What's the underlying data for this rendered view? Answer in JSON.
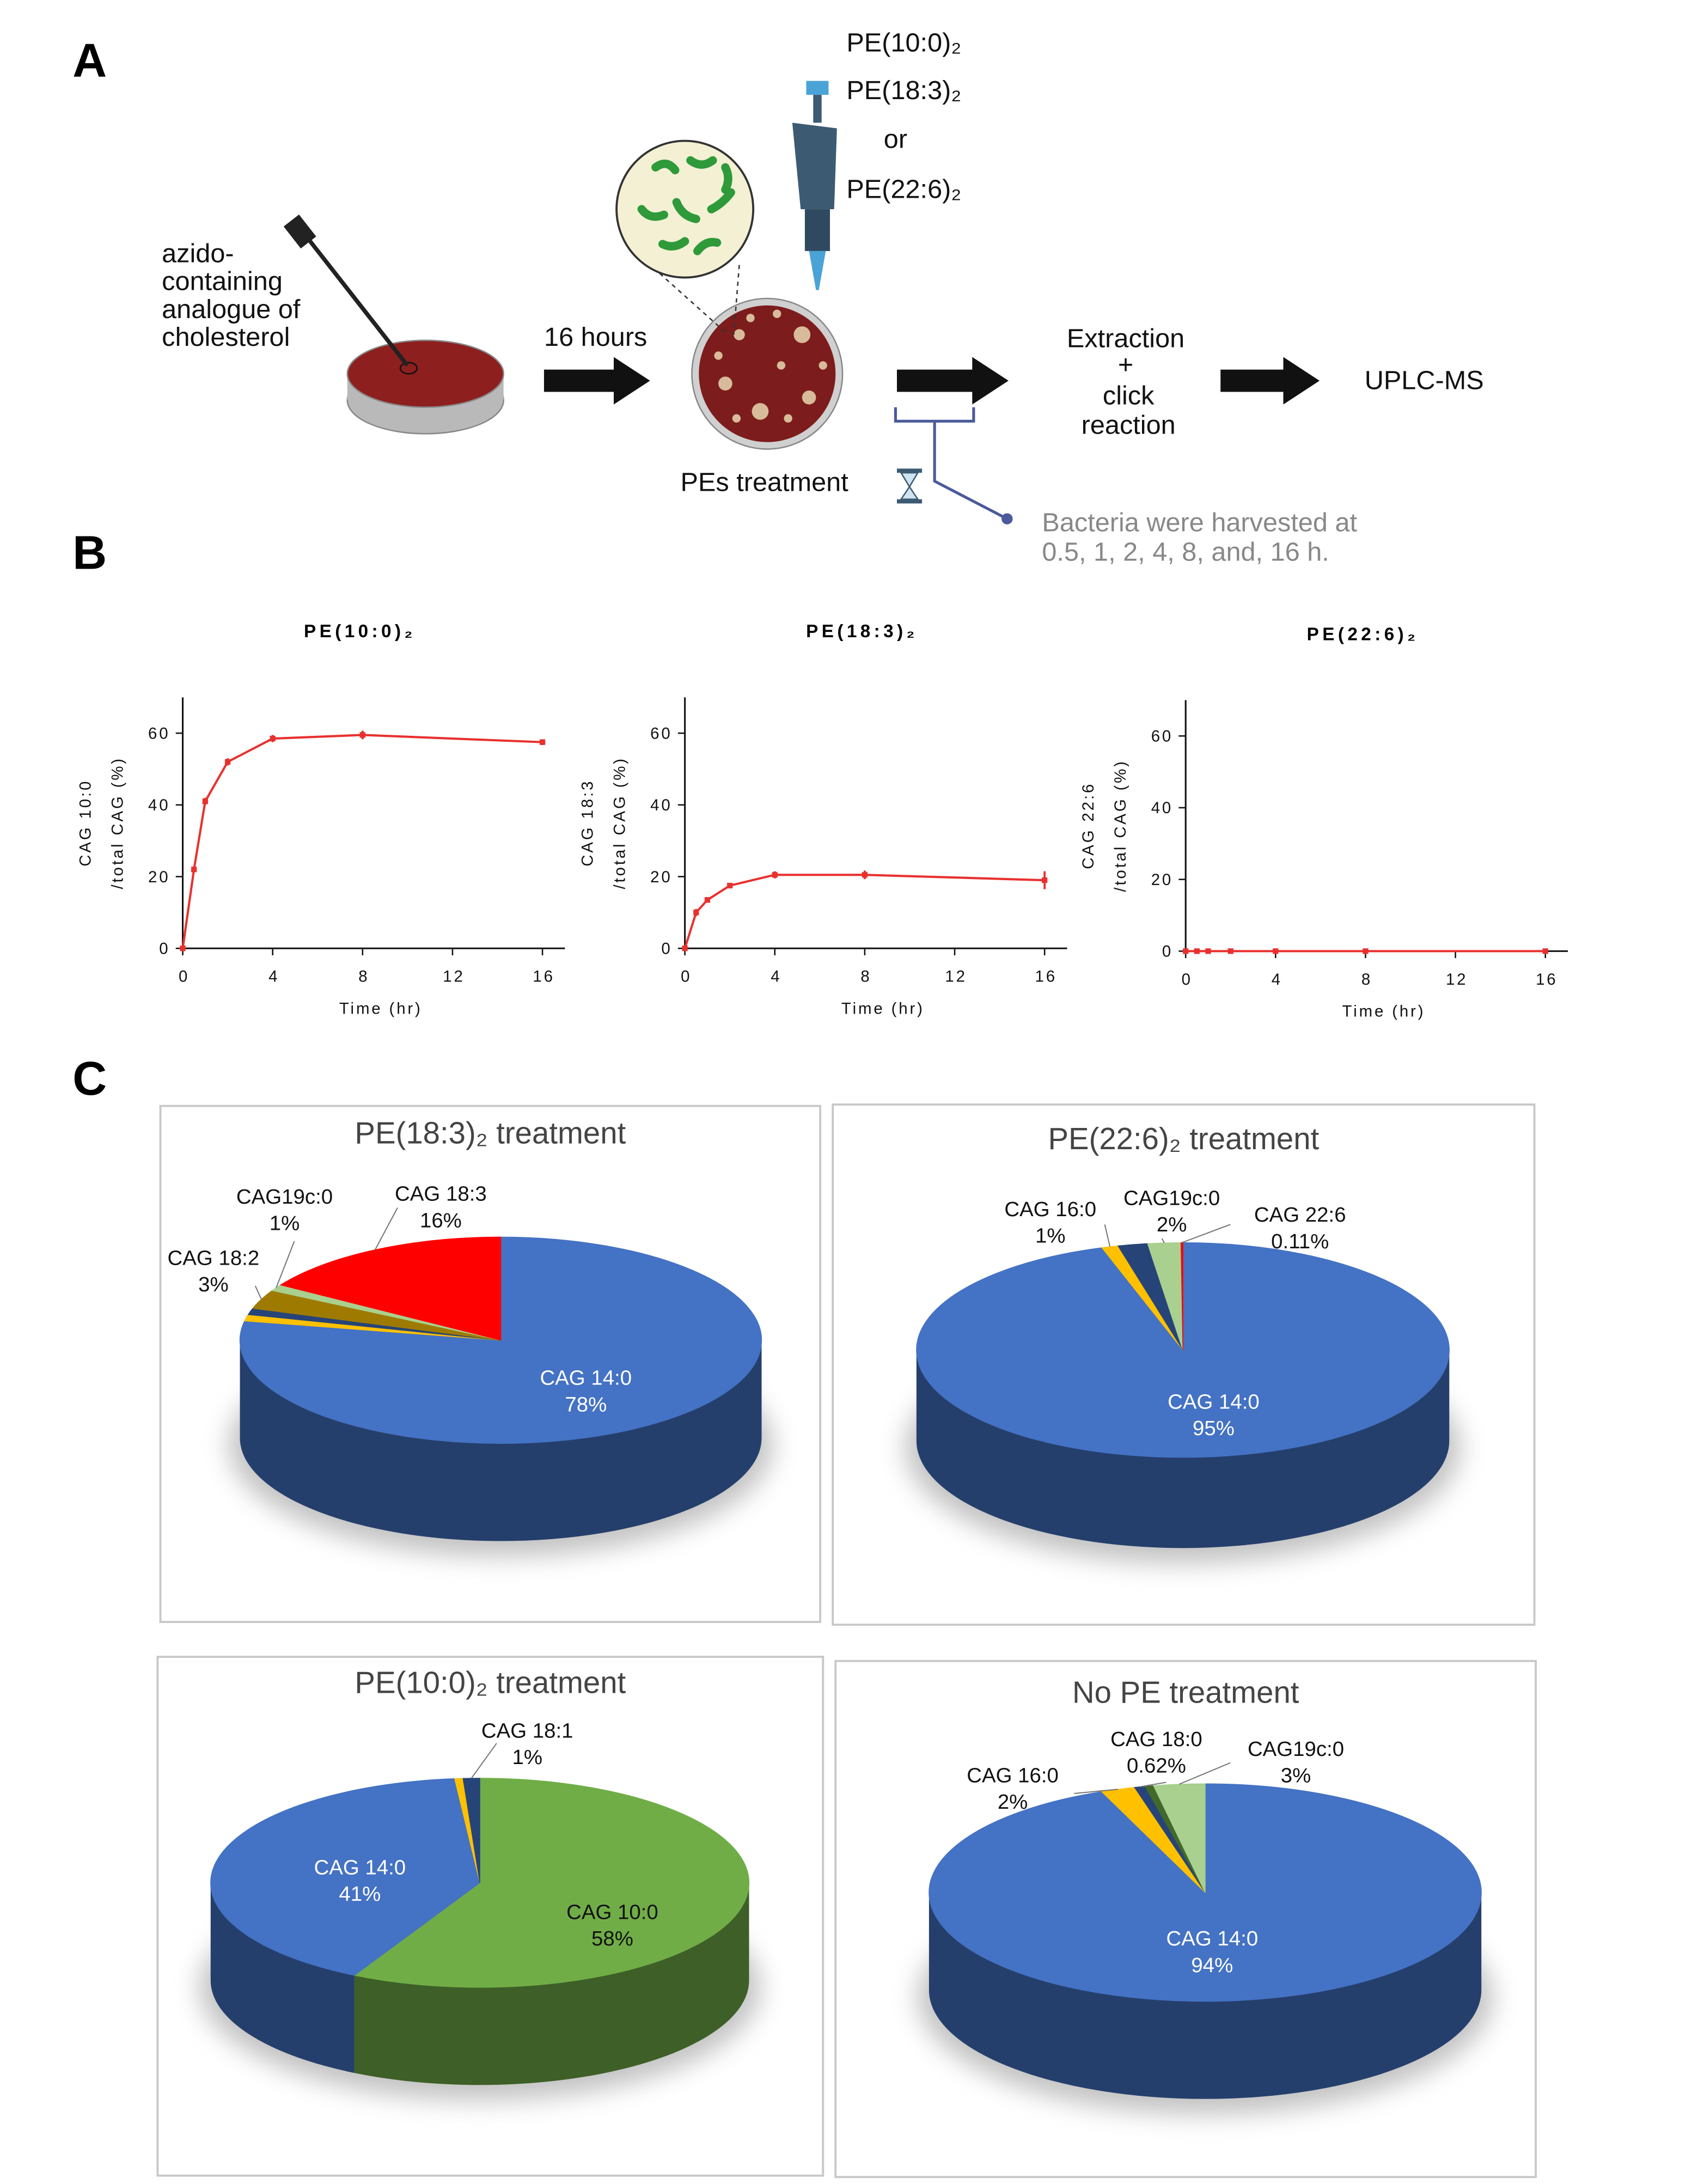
{
  "panel_labels": {
    "a": "A",
    "b": "B",
    "c": "C"
  },
  "diagram": {
    "substrate": [
      "azido-",
      "containing",
      "analogue of",
      "cholesterol"
    ],
    "incubation": "16 hours",
    "treatments": [
      "PE(10:0)₂",
      "PE(18:3)₂",
      "or",
      "PE(22:6)₂"
    ],
    "treatment_label": "PEs treatment",
    "processing": [
      "Extraction",
      "+",
      "click",
      "reaction"
    ],
    "analysis": "UPLC-MS",
    "note": [
      "Bacteria were harvested at",
      "0.5, 1, 2, 4, 8, and, 16 h."
    ]
  },
  "chart_data": [
    {
      "type": "line",
      "title": "PE(10:0)₂",
      "xlabel": "Time (hr)",
      "ylabel": [
        "CAG 10:0",
        "/total CAG (%)"
      ],
      "x": [
        0,
        0.5,
        1,
        2,
        4,
        8,
        16
      ],
      "series": [
        {
          "color": "#e8312f",
          "values": [
            0,
            22,
            41,
            52,
            58.5,
            59.5,
            57.5
          ],
          "errors": [
            0,
            0.8,
            1,
            1,
            1,
            1.2,
            0.8
          ]
        }
      ],
      "xlim": [
        0,
        17
      ],
      "ylim": [
        0,
        70
      ],
      "xticks": [
        0,
        4,
        8,
        12,
        16
      ],
      "yticks": [
        0,
        20,
        40,
        60
      ]
    },
    {
      "type": "line",
      "title": "PE(18:3)₂",
      "xlabel": "Time (hr)",
      "ylabel": [
        "CAG 18:3",
        "/total CAG (%)"
      ],
      "x": [
        0,
        0.5,
        1,
        2,
        4,
        8,
        16
      ],
      "series": [
        {
          "color": "#e8312f",
          "values": [
            0,
            10,
            13.5,
            17.5,
            20.5,
            20.5,
            19
          ],
          "errors": [
            0,
            1,
            0.8,
            0.6,
            1,
            1.2,
            2.5
          ]
        }
      ],
      "xlim": [
        0,
        17
      ],
      "ylim": [
        0,
        70
      ],
      "xticks": [
        0,
        4,
        8,
        12,
        16
      ],
      "yticks": [
        0,
        20,
        40,
        60
      ]
    },
    {
      "type": "line",
      "title": "PE(22:6)₂",
      "xlabel": "Time (hr)",
      "ylabel": [
        "CAG 22:6",
        "/total CAG (%)"
      ],
      "x": [
        0,
        0.5,
        1,
        2,
        4,
        8,
        16
      ],
      "series": [
        {
          "color": "#e8312f",
          "values": [
            0,
            0,
            0,
            0,
            0,
            0,
            0
          ],
          "errors": [
            0,
            0,
            0,
            0,
            0,
            0,
            0
          ]
        }
      ],
      "xlim": [
        0,
        17
      ],
      "ylim": [
        0,
        70
      ],
      "xticks": [
        0,
        4,
        8,
        12,
        16
      ],
      "yticks": [
        0,
        20,
        40,
        60
      ]
    },
    {
      "type": "pie",
      "title": "PE(18:3)₂ treatment",
      "categories": [
        "CAG 14:0",
        null,
        null,
        "CAG 18:2",
        "CAG19c:0",
        "CAG 18:3"
      ],
      "values": [
        78,
        1,
        1,
        3,
        1,
        16
      ],
      "value_labels": [
        "78%",
        null,
        null,
        "3%",
        "1%",
        "16%"
      ],
      "colors": [
        "#4472c4",
        "#ffc000",
        "#264478",
        "#9e7b00",
        "#a9d08e",
        "#ff0000"
      ]
    },
    {
      "type": "pie",
      "title": "PE(22:6)₂ treatment",
      "categories": [
        "CAG 14:0",
        "CAG 16:0",
        null,
        "CAG19c:0",
        "CAG 22:6"
      ],
      "values": [
        95,
        1,
        1.8,
        2,
        0.11
      ],
      "value_labels": [
        "95%",
        "1%",
        null,
        "2%",
        "0.11%"
      ],
      "colors": [
        "#4472c4",
        "#ffc000",
        "#264478",
        "#a9d08e",
        "#ff0000"
      ]
    },
    {
      "type": "pie",
      "title": "PE(10:0)₂ treatment",
      "categories": [
        "CAG 10:0",
        "CAG 14:0",
        null,
        "CAG 18:1"
      ],
      "values": [
        58,
        41,
        0.5,
        1
      ],
      "value_labels": [
        "58%",
        "41%",
        null,
        "1%"
      ],
      "colors": [
        "#70ad47",
        "#4472c4",
        "#ffc000",
        "#264478"
      ]
    },
    {
      "type": "pie",
      "title": "No PE treatment",
      "categories": [
        "CAG 14:0",
        "CAG 16:0",
        "CAG 18:0",
        null,
        "CAG19c:0"
      ],
      "values": [
        94,
        2,
        0.62,
        0.5,
        3
      ],
      "value_labels": [
        "94%",
        "2%",
        "0.62%",
        null,
        "3%"
      ],
      "colors": [
        "#4472c4",
        "#ffc000",
        "#264478",
        "#43682b",
        "#a9d08e"
      ]
    }
  ]
}
